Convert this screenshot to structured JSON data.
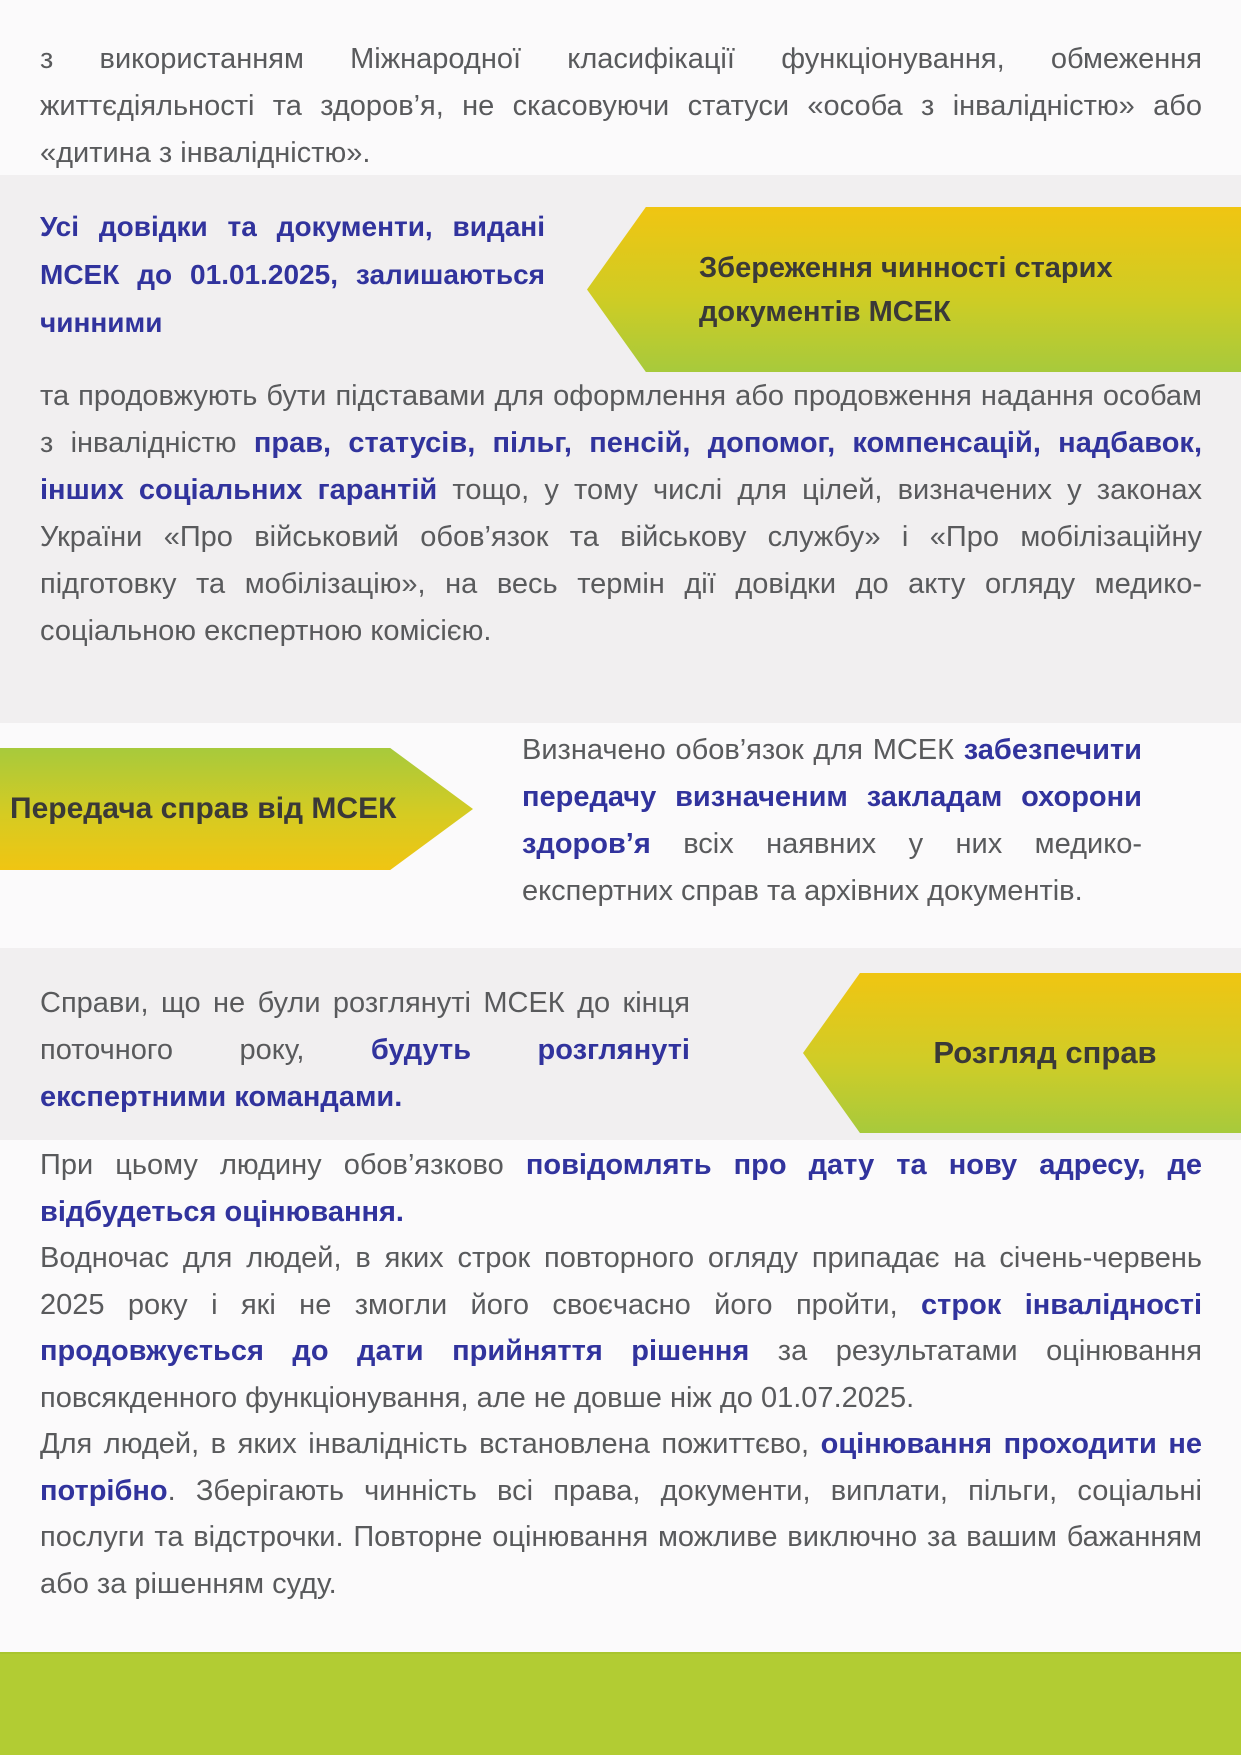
{
  "palette": {
    "page-bg": "#fbfafb",
    "section-gray": "#f1eff0",
    "accent-blue": "#31339d",
    "text-gray": "#595a5c",
    "arrow-text": "#3a3938",
    "gold": "#f0c512",
    "lime": "#a7ca3c",
    "bar-green": "#b2cc33"
  },
  "intro": {
    "segments": [
      {
        "text": "з використанням Міжнародної класифікації функціонування, обмеження життєдіяльності та здоров’я, не скасовуючи статуси «особа з інвалідністю» або «дитина з інвалідністю»."
      }
    ]
  },
  "section_old_docs": {
    "highlight": {
      "segments": [
        {
          "text": "Усі довідки та документи, видані МСЕК до 01.01.2025, залишаються чинними",
          "style": "blue"
        }
      ]
    },
    "arrow_label": "Збереження чинності старих документів МСЕК",
    "body": {
      "segments": [
        {
          "text": "та продовжують бути підставами для оформлення або продовження надання особам з інвалідністю "
        },
        {
          "text": "прав, статусів, пільг, пенсій, допомог, компенсацій, надбавок, інших соціальних гарантій",
          "style": "blue"
        },
        {
          "text": " тощо, у тому числі для цілей, визначених у законах України «Про військовий обов’язок та військову службу» і «Про мобілізаційну підготовку та мобілізацію», на весь термін дії довідки до акту огляду медико-соціальною експертною комісією."
        }
      ]
    }
  },
  "section_case_transfer": {
    "arrow_label": "Передача справ від МСЕК",
    "body": {
      "segments": [
        {
          "text": "Визначено обов’язок для МСЕК "
        },
        {
          "text": "забезпечити передачу визначеним закладам охорони здоров’я",
          "style": "blue"
        },
        {
          "text": " всіх наявних у них медико-експертних справ та архівних документів."
        }
      ]
    }
  },
  "section_case_review": {
    "arrow_label": "Розгляд справ",
    "body": {
      "segments": [
        {
          "text": "Справи, що не були розглянуті МСЕК до кінця поточного року, "
        },
        {
          "text": "будуть розглянуті експертними командами.",
          "style": "blue"
        }
      ]
    }
  },
  "closing": {
    "notify": {
      "segments": [
        {
          "text": "При цьому людину обов’язково "
        },
        {
          "text": "повідомлять про дату та нову адресу, де відбудеться оцінювання.",
          "style": "blue"
        }
      ]
    },
    "extension": {
      "segments": [
        {
          "text": "Водночас для людей, в яких строк повторного огляду припадає на січень-червень 2025 року і які не змогли його своєчасно його пройти, "
        },
        {
          "text": "строк інвалідності продовжується до дати прийняття рішення",
          "style": "blue"
        },
        {
          "text": " за результатами оцінювання повсякденного функціонування, але не довше ніж до 01.07.2025."
        }
      ]
    },
    "lifetime": {
      "segments": [
        {
          "text": "Для людей, в яких інвалідність встановлена пожиттєво, "
        },
        {
          "text": "оцінювання проходити не потрібно",
          "style": "blue"
        },
        {
          "text": ". Зберігають чинність всі права, документи, виплати, пільги, соціальні послуги та відстрочки. Повторне оцінювання можливе виключно за вашим бажанням або за рішенням суду."
        }
      ]
    }
  }
}
